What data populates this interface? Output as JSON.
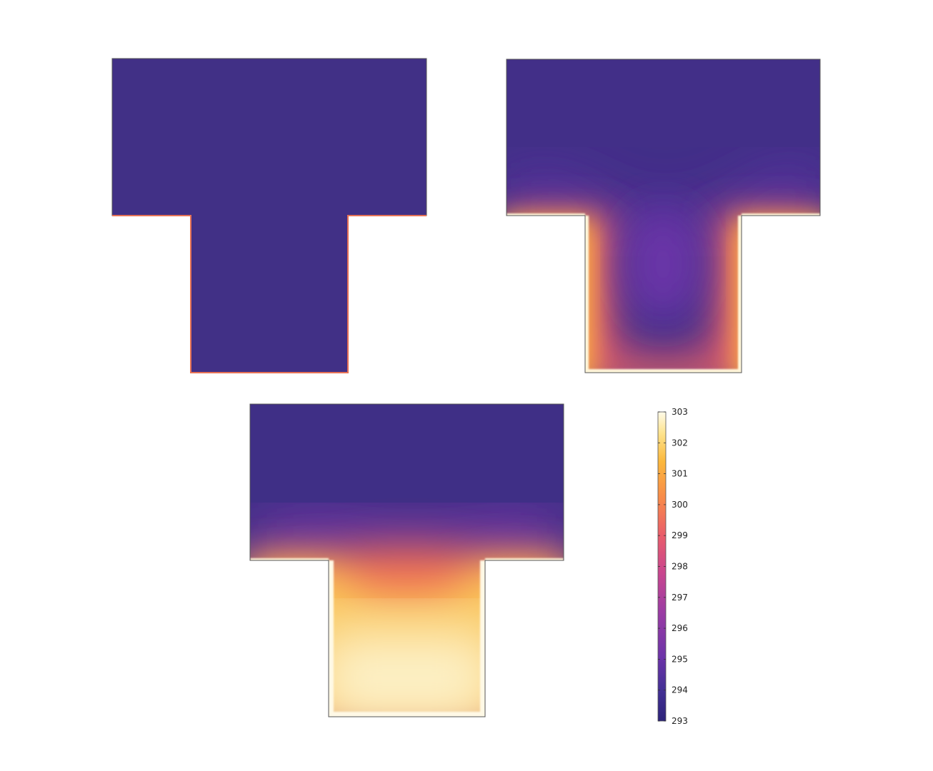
{
  "chart_data": [
    {
      "type": "heatmap",
      "panel": "top-left",
      "quantity_range": [
        293,
        303
      ],
      "field": "uniform",
      "value": 293,
      "hot_boundary": "stem edges",
      "hot_boundary_value": 303
    },
    {
      "type": "heatmap",
      "panel": "top-right",
      "quantity_range": [
        293,
        303
      ],
      "field": "heat diffused from stem walls and shoulders",
      "stem_wall_value": 303,
      "stem_center_value": 296,
      "top_region_value": 293.5
    },
    {
      "type": "heatmap",
      "panel": "bottom",
      "quantity_range": [
        293,
        303
      ],
      "field": "heat diffused, stem nearly saturated",
      "stem_bottom_value": 303,
      "stem_junction_value": 301,
      "top_region_value": 293
    }
  ],
  "colorbar": {
    "colormap": "plasma",
    "min": 293,
    "max": 303,
    "ticks": [
      "303",
      "302",
      "301",
      "300",
      "299",
      "298",
      "297",
      "296",
      "295",
      "294",
      "293"
    ]
  },
  "colors": {
    "cold": "#3d2c84",
    "mid_cold": "#6a33a8",
    "mid": "#c73f8c",
    "warm": "#f06a4e",
    "hot": "#f9b73a",
    "hottest": "#fdf6d8",
    "outline": "#444444"
  }
}
